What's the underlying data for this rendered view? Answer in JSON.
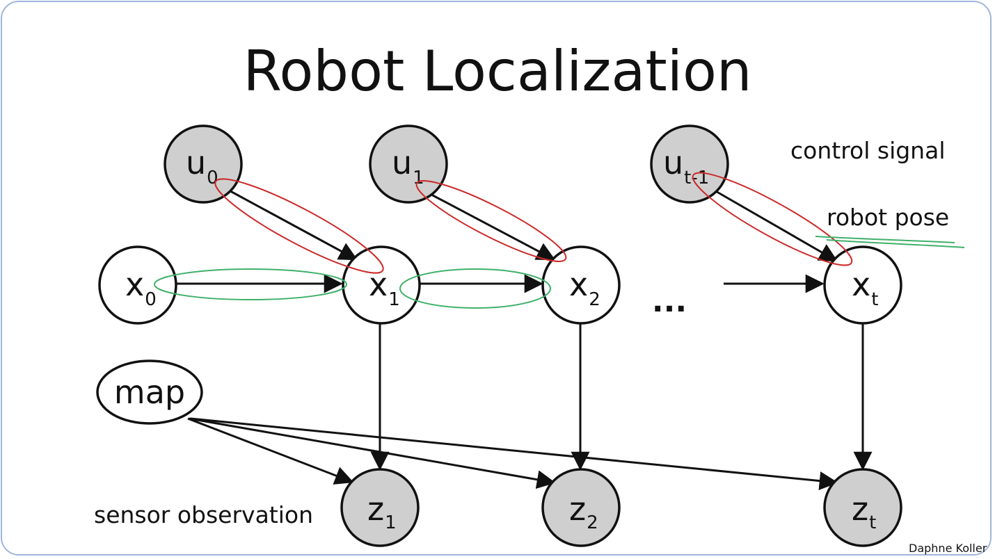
{
  "title": "Robot Localization",
  "labels": {
    "control_signal": "control signal",
    "robot_pose": "robot pose",
    "sensor_observation": "sensor observation",
    "ellipsis": "...",
    "credit": "Daphne Koller"
  },
  "nodes": {
    "u0": {
      "main": "u",
      "sub": "0"
    },
    "u1": {
      "main": "u",
      "sub": "1"
    },
    "ut1": {
      "main": "u",
      "sub": "t-1"
    },
    "x0": {
      "main": "x",
      "sub": "0"
    },
    "x1": {
      "main": "x",
      "sub": "1"
    },
    "x2": {
      "main": "x",
      "sub": "2"
    },
    "xt": {
      "main": "x",
      "sub": "t"
    },
    "map": {
      "main": "map"
    },
    "z1": {
      "main": "z",
      "sub": "1"
    },
    "z2": {
      "main": "z",
      "sub": "2"
    },
    "zt": {
      "main": "z",
      "sub": "t"
    }
  },
  "colors": {
    "observed_fill": "#cfcfcf",
    "unobserved_fill": "#ffffff",
    "edge": "#111111",
    "red_annotation": "#cc2a2a",
    "green_annotation": "#3fb06a",
    "frame_border": "#9fb6dc"
  }
}
